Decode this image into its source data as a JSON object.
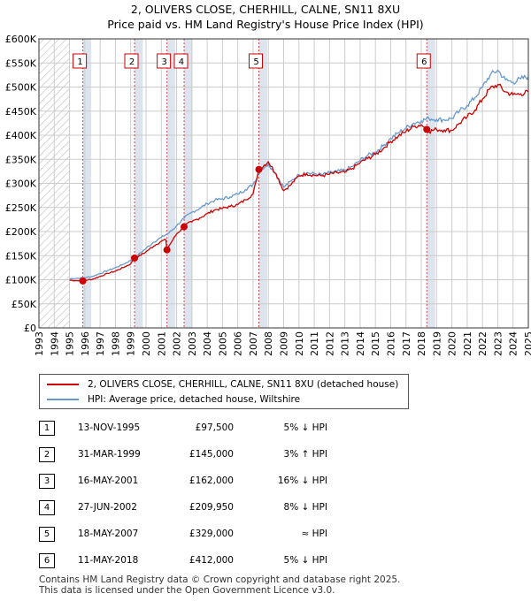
{
  "title_line1": "2, OLIVERS CLOSE, CHERHILL, CALNE, SN11 8XU",
  "title_line2": "Price paid vs. HM Land Registry's House Price Index (HPI)",
  "colors": {
    "property": "#cc0000",
    "hpi": "#6699cc",
    "grid": "#cccccc",
    "shade": "#dce4ee",
    "hatch": "#bbbbbb"
  },
  "legend": {
    "property": "2, OLIVERS CLOSE, CHERHILL, CALNE, SN11 8XU (detached house)",
    "hpi": "HPI: Average price, detached house, Wiltshire"
  },
  "sales": [
    {
      "num": "1",
      "date": "13-NOV-1995",
      "price": "£97,500",
      "rel": "5% ↓ HPI"
    },
    {
      "num": "2",
      "date": "31-MAR-1999",
      "price": "£145,000",
      "rel": "3% ↑ HPI"
    },
    {
      "num": "3",
      "date": "16-MAY-2001",
      "price": "£162,000",
      "rel": "16% ↓ HPI"
    },
    {
      "num": "4",
      "date": "27-JUN-2002",
      "price": "£209,950",
      "rel": "8% ↓ HPI"
    },
    {
      "num": "5",
      "date": "18-MAY-2007",
      "price": "£329,000",
      "rel": "≈ HPI"
    },
    {
      "num": "6",
      "date": "11-MAY-2018",
      "price": "£412,000",
      "rel": "5% ↓ HPI"
    }
  ],
  "footer_line1": "Contains HM Land Registry data © Crown copyright and database right 2025.",
  "footer_line2": "This data is licensed under the Open Government Licence v3.0.",
  "chart_data": {
    "type": "line",
    "xlim": [
      1993,
      2025
    ],
    "ylim": [
      0,
      600000
    ],
    "x_ticks": [
      1993,
      1994,
      1995,
      1996,
      1997,
      1998,
      1999,
      2000,
      2001,
      2002,
      2003,
      2004,
      2005,
      2006,
      2007,
      2008,
      2009,
      2010,
      2011,
      2012,
      2013,
      2014,
      2015,
      2016,
      2017,
      2018,
      2019,
      2020,
      2021,
      2022,
      2023,
      2024,
      2025
    ],
    "y_ticks": [
      0,
      50000,
      100000,
      150000,
      200000,
      250000,
      300000,
      350000,
      400000,
      450000,
      500000,
      550000,
      600000
    ],
    "y_tick_labels": [
      "£0",
      "£50K",
      "£100K",
      "£150K",
      "£200K",
      "£250K",
      "£300K",
      "£350K",
      "£400K",
      "£450K",
      "£500K",
      "£550K",
      "£600K"
    ],
    "grid": true,
    "hatched_regions": [
      [
        1993,
        1995.0
      ],
      [
        2025.0,
        2025.5
      ]
    ],
    "sale_markers": [
      {
        "label": "1",
        "x": 1995.87,
        "y": 97500
      },
      {
        "label": "2",
        "x": 1999.25,
        "y": 145000
      },
      {
        "label": "3",
        "x": 2001.37,
        "y": 162000
      },
      {
        "label": "4",
        "x": 2002.49,
        "y": 209950
      },
      {
        "label": "5",
        "x": 2007.38,
        "y": 329000
      },
      {
        "label": "6",
        "x": 2018.36,
        "y": 412000
      }
    ],
    "series": [
      {
        "name": "HPI: Average price, detached house, Wiltshire",
        "x": [
          1995.0,
          1995.5,
          1996.0,
          1996.5,
          1997.0,
          1997.5,
          1998.0,
          1998.5,
          1999.0,
          1999.5,
          2000.0,
          2000.5,
          2001.0,
          2001.5,
          2002.0,
          2002.5,
          2003.0,
          2003.5,
          2004.0,
          2004.5,
          2005.0,
          2005.5,
          2006.0,
          2006.5,
          2007.0,
          2007.5,
          2008.0,
          2008.5,
          2009.0,
          2009.5,
          2010.0,
          2010.5,
          2011.0,
          2011.5,
          2012.0,
          2012.5,
          2013.0,
          2013.5,
          2014.0,
          2014.5,
          2015.0,
          2015.5,
          2016.0,
          2016.5,
          2017.0,
          2017.5,
          2018.0,
          2018.5,
          2019.0,
          2019.5,
          2020.0,
          2020.5,
          2021.0,
          2021.5,
          2022.0,
          2022.5,
          2023.0,
          2023.5,
          2024.0,
          2024.5,
          2025.0
        ],
        "values": [
          102000,
          103000,
          104000,
          107000,
          113000,
          119000,
          125000,
          132000,
          140000,
          152000,
          165000,
          178000,
          188000,
          197000,
          212000,
          228000,
          240000,
          248000,
          258000,
          265000,
          268000,
          272000,
          278000,
          287000,
          298000,
          328000,
          340000,
          320000,
          292000,
          305000,
          318000,
          322000,
          320000,
          318000,
          322000,
          325000,
          327000,
          335000,
          348000,
          358000,
          365000,
          378000,
          393000,
          405000,
          415000,
          425000,
          430000,
          435000,
          433000,
          432000,
          435000,
          450000,
          462000,
          478000,
          500000,
          525000,
          535000,
          515000,
          510000,
          517000,
          522000
        ]
      },
      {
        "name": "2, OLIVERS CLOSE, CHERHILL, CALNE, SN11 8XU (detached house)",
        "x": [
          1995.0,
          1995.5,
          1995.87,
          1996.0,
          1996.5,
          1997.0,
          1997.5,
          1998.0,
          1998.5,
          1999.0,
          1999.25,
          1999.5,
          2000.0,
          2000.5,
          2001.0,
          2001.3,
          2001.37,
          2001.5,
          2002.0,
          2002.49,
          2002.5,
          2003.0,
          2003.5,
          2004.0,
          2004.5,
          2005.0,
          2005.5,
          2006.0,
          2006.5,
          2007.0,
          2007.38,
          2007.5,
          2008.0,
          2008.5,
          2009.0,
          2009.5,
          2010.0,
          2010.5,
          2011.0,
          2011.5,
          2012.0,
          2012.5,
          2013.0,
          2013.5,
          2014.0,
          2014.5,
          2015.0,
          2015.5,
          2016.0,
          2016.5,
          2017.0,
          2017.5,
          2018.0,
          2018.36,
          2018.5,
          2019.0,
          2019.5,
          2020.0,
          2020.5,
          2021.0,
          2021.5,
          2022.0,
          2022.5,
          2023.0,
          2023.5,
          2024.0,
          2024.5,
          2025.0
        ],
        "values": [
          99000,
          98000,
          97500,
          99000,
          101000,
          107000,
          113000,
          118000,
          125000,
          133000,
          145000,
          148000,
          158000,
          170000,
          180000,
          183000,
          162000,
          170000,
          195000,
          209950,
          213000,
          220000,
          228000,
          237000,
          245000,
          248000,
          252000,
          256000,
          266000,
          278000,
          329000,
          332000,
          345000,
          320000,
          285000,
          298000,
          316000,
          320000,
          317000,
          316000,
          319000,
          322000,
          323000,
          331000,
          343000,
          352000,
          360000,
          372000,
          387000,
          398000,
          408000,
          418000,
          422000,
          412000,
          408000,
          412000,
          411000,
          410000,
          425000,
          438000,
          452000,
          475000,
          497000,
          505000,
          490000,
          484000,
          486000,
          490000
        ]
      }
    ]
  }
}
